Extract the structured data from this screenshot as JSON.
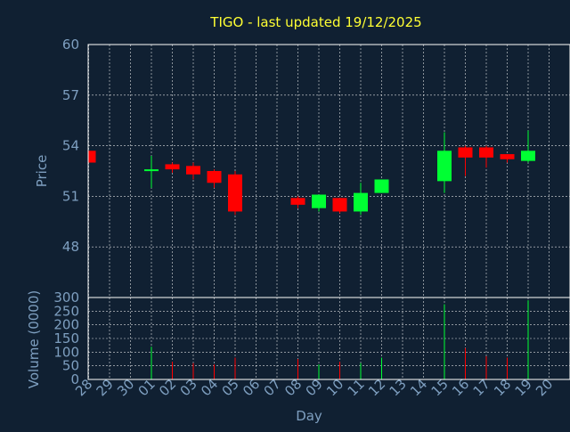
{
  "chart_data": {
    "type": "candlestick",
    "title": "TIGO - last updated 19/12/2025",
    "xlabel": "Day",
    "price_ylabel": "Price",
    "volume_ylabel": "Volume (0000)",
    "x_ticks": [
      "28",
      "29",
      "30",
      "01",
      "02",
      "03",
      "04",
      "05",
      "06",
      "07",
      "08",
      "09",
      "10",
      "11",
      "12",
      "13",
      "14",
      "15",
      "16",
      "17",
      "18",
      "19",
      "20"
    ],
    "price_ylim": [
      45,
      60
    ],
    "price_ticks": [
      48,
      51,
      54,
      57,
      60
    ],
    "volume_ylim": [
      0,
      300
    ],
    "volume_ticks": [
      0,
      50,
      100,
      150,
      200,
      250,
      300
    ],
    "grid": true,
    "colors": {
      "up": "#00ff33",
      "down": "#ff0000",
      "background": "#102032",
      "title": "#ffff33",
      "labels": "#7e9fc0"
    },
    "candles": [
      {
        "day": "28",
        "open": 53.7,
        "high": 53.7,
        "low": 53.0,
        "close": 53.0,
        "volume": 0
      },
      {
        "day": "01",
        "open": 52.5,
        "high": 53.4,
        "low": 51.5,
        "close": 52.6,
        "volume": 120
      },
      {
        "day": "02",
        "open": 52.9,
        "high": 53.0,
        "low": 52.4,
        "close": 52.6,
        "volume": 65
      },
      {
        "day": "03",
        "open": 52.8,
        "high": 53.0,
        "low": 52.0,
        "close": 52.3,
        "volume": 60
      },
      {
        "day": "04",
        "open": 52.5,
        "high": 52.6,
        "low": 51.5,
        "close": 51.8,
        "volume": 55
      },
      {
        "day": "05",
        "open": 52.3,
        "high": 52.5,
        "low": 49.9,
        "close": 50.1,
        "volume": 80
      },
      {
        "day": "08",
        "open": 50.9,
        "high": 51.0,
        "low": 50.3,
        "close": 50.5,
        "volume": 75
      },
      {
        "day": "09",
        "open": 50.3,
        "high": 51.1,
        "low": 50.1,
        "close": 51.1,
        "volume": 55
      },
      {
        "day": "10",
        "open": 50.9,
        "high": 50.9,
        "low": 50.0,
        "close": 50.1,
        "volume": 65
      },
      {
        "day": "11",
        "open": 50.1,
        "high": 51.8,
        "low": 49.9,
        "close": 51.2,
        "volume": 60
      },
      {
        "day": "12",
        "open": 51.2,
        "high": 52.0,
        "low": 51.2,
        "close": 52.0,
        "volume": 80
      },
      {
        "day": "15",
        "open": 51.9,
        "high": 54.8,
        "low": 51.2,
        "close": 53.7,
        "volume": 275
      },
      {
        "day": "16",
        "open": 53.9,
        "high": 54.0,
        "low": 52.2,
        "close": 53.3,
        "volume": 115
      },
      {
        "day": "17",
        "open": 53.9,
        "high": 54.0,
        "low": 52.7,
        "close": 53.3,
        "volume": 85
      },
      {
        "day": "18",
        "open": 53.5,
        "high": 53.5,
        "low": 53.0,
        "close": 53.2,
        "volume": 80
      },
      {
        "day": "19",
        "open": 53.1,
        "high": 54.9,
        "low": 53.0,
        "close": 53.7,
        "volume": 290
      }
    ]
  }
}
